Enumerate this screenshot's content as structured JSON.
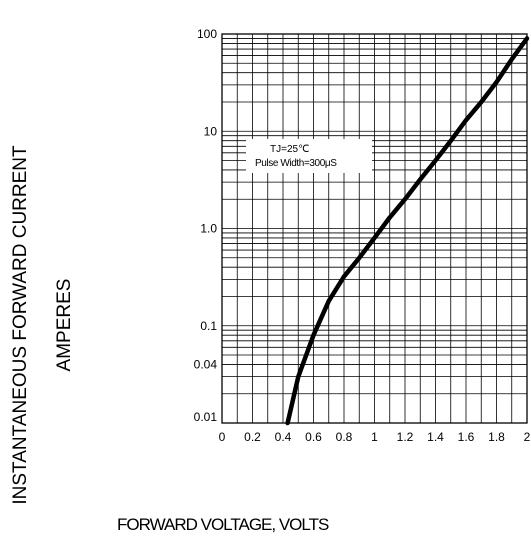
{
  "chart_data": {
    "type": "line",
    "xlabel": "FORWARD VOLTAGE, VOLTS",
    "ylabel_line1": "INSTANTANEOUS FORWARD CURRENT",
    "ylabel_line2": "AMPERES",
    "annotation": {
      "line1": "TJ=25℃",
      "line2": "Pulse Width=300μS"
    },
    "xlim": [
      0,
      2
    ],
    "ylim": [
      0.01,
      100
    ],
    "yscale": "log",
    "x_ticks": [
      "0",
      "0.2",
      "0.4",
      "0.6",
      "0.8",
      "1",
      "1.2",
      "1.4",
      "1.6",
      "1.8",
      "2"
    ],
    "y_tick_labels": [
      "100",
      "10",
      "1.0",
      "0.1",
      "0.04",
      "0.01"
    ],
    "grid": true,
    "series": [
      {
        "x": [
          0.43,
          0.5,
          0.6,
          0.7,
          0.8,
          0.9,
          1.0,
          1.1,
          1.2,
          1.3,
          1.4,
          1.5,
          1.6,
          1.7,
          1.8,
          1.9,
          2.0
        ],
        "values": [
          0.01,
          0.03,
          0.08,
          0.18,
          0.32,
          0.5,
          0.8,
          1.3,
          2.0,
          3.2,
          5.0,
          8.0,
          13.0,
          20.0,
          32.0,
          55.0,
          90.0
        ]
      }
    ]
  }
}
